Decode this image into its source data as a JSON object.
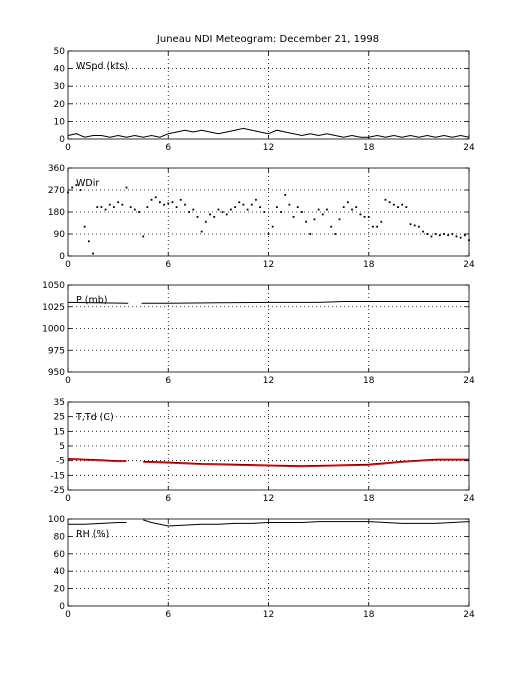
{
  "title": "Juneau NDI Meteogram:   December 21, 1998",
  "x_ticks": [
    0,
    6,
    12,
    18,
    24
  ],
  "colors": {
    "frame": "#000000",
    "grid": "#000000",
    "temperature": "#000000",
    "dewpoint": "#ff0000"
  },
  "chart_data": [
    {
      "type": "line",
      "label": "WSpd (kts)",
      "xlim": [
        0,
        24
      ],
      "ylim": [
        0,
        50
      ],
      "yticks": [
        0,
        10,
        20,
        30,
        40,
        50
      ],
      "grid": true,
      "series": [
        {
          "color": "#000000",
          "x": [
            0,
            0.5,
            1,
            1.5,
            2,
            2.5,
            3,
            3.5,
            4,
            4.5,
            5,
            5.5,
            6,
            6.5,
            7,
            7.5,
            8,
            8.5,
            9,
            9.5,
            10,
            10.5,
            11,
            11.5,
            12,
            12.5,
            13,
            13.5,
            14,
            14.5,
            15,
            15.5,
            16,
            16.5,
            17,
            17.5,
            18,
            18.5,
            19,
            19.5,
            20,
            20.5,
            21,
            21.5,
            22,
            22.5,
            23,
            23.5,
            24
          ],
          "y": [
            2,
            3,
            1,
            2,
            2,
            1,
            2,
            1,
            2,
            1,
            2,
            1,
            3,
            4,
            5,
            4,
            5,
            4,
            3,
            4,
            5,
            6,
            5,
            4,
            3,
            5,
            4,
            3,
            2,
            3,
            2,
            3,
            2,
            1,
            2,
            1,
            1,
            2,
            1,
            2,
            1,
            2,
            1,
            2,
            1,
            2,
            1,
            2,
            1
          ]
        }
      ]
    },
    {
      "type": "scatter",
      "label": "WDir",
      "xlim": [
        0,
        24
      ],
      "ylim": [
        0,
        360
      ],
      "yticks": [
        0,
        90,
        180,
        270,
        360
      ],
      "grid": true,
      "series": [
        {
          "color": "#000000",
          "x": [
            0,
            0.25,
            0.5,
            0.75,
            1,
            1.25,
            1.5,
            1.75,
            2,
            2.25,
            2.5,
            2.75,
            3,
            3.25,
            3.5,
            3.75,
            4,
            4.25,
            4.5,
            4.75,
            5,
            5.25,
            5.5,
            5.75,
            6,
            6.25,
            6.5,
            6.75,
            7,
            7.25,
            7.5,
            7.75,
            8,
            8.25,
            8.5,
            8.75,
            9,
            9.25,
            9.5,
            9.75,
            10,
            10.25,
            10.5,
            10.75,
            11,
            11.25,
            11.5,
            11.75,
            12,
            12.25,
            12.5,
            12.75,
            13,
            13.25,
            13.5,
            13.75,
            14,
            14.25,
            14.5,
            14.75,
            15,
            15.25,
            15.5,
            15.75,
            16,
            16.25,
            16.5,
            16.75,
            17,
            17.25,
            17.5,
            17.75,
            18,
            18.25,
            18.5,
            18.75,
            19,
            19.25,
            19.5,
            19.75,
            20,
            20.25,
            20.5,
            20.75,
            21,
            21.25,
            21.5,
            21.75,
            22,
            22.25,
            22.5,
            22.75,
            23,
            23.25,
            23.5,
            23.75,
            24
          ],
          "y": [
            260,
            280,
            290,
            270,
            120,
            60,
            10,
            200,
            200,
            190,
            210,
            200,
            220,
            210,
            280,
            200,
            190,
            180,
            80,
            200,
            230,
            240,
            220,
            210,
            215,
            220,
            200,
            230,
            210,
            180,
            190,
            160,
            100,
            140,
            170,
            160,
            190,
            180,
            170,
            190,
            200,
            220,
            210,
            190,
            210,
            230,
            200,
            180,
            90,
            120,
            200,
            180,
            250,
            210,
            160,
            200,
            180,
            140,
            90,
            150,
            190,
            170,
            190,
            120,
            90,
            150,
            200,
            220,
            190,
            200,
            170,
            160,
            160,
            120,
            120,
            140,
            230,
            220,
            210,
            200,
            210,
            200,
            130,
            125,
            120,
            100,
            90,
            80,
            90,
            85,
            90,
            85,
            90,
            80,
            75,
            85,
            65
          ]
        }
      ]
    },
    {
      "type": "line",
      "label": "P (mb)",
      "xlim": [
        0,
        24
      ],
      "ylim": [
        950,
        1050
      ],
      "yticks": [
        950,
        975,
        1000,
        1025,
        1050
      ],
      "grid": true,
      "series": [
        {
          "color": "#000000",
          "x": [
            0,
            3.6,
            null,
            4.4,
            6,
            9,
            12,
            15,
            16.5,
            18,
            21,
            24
          ],
          "y": [
            1030,
            1029,
            null,
            1029,
            1029,
            1029.5,
            1030,
            1030,
            1031,
            1031,
            1031,
            1031
          ]
        }
      ]
    },
    {
      "type": "line",
      "label": "T,Td (C)",
      "xlim": [
        0,
        24
      ],
      "ylim": [
        -25,
        35
      ],
      "yticks": [
        -25,
        -15,
        -5,
        5,
        15,
        25,
        35
      ],
      "grid": true,
      "series": [
        {
          "color": "#000000",
          "x": [
            0,
            1,
            2,
            3,
            3.5,
            null,
            4.5,
            6,
            8,
            10,
            12,
            14,
            16,
            18,
            20,
            22,
            24
          ],
          "y": [
            -3.5,
            -4,
            -4.5,
            -5,
            -5,
            null,
            -5.5,
            -6,
            -7,
            -7.5,
            -8,
            -8.5,
            -8,
            -7.5,
            -5.5,
            -4,
            -4
          ]
        },
        {
          "color": "#ff0000",
          "x": [
            0,
            1,
            2,
            3,
            3.5,
            null,
            4.5,
            6,
            8,
            10,
            12,
            14,
            16,
            18,
            20,
            22,
            24
          ],
          "y": [
            -4,
            -4.5,
            -5,
            -5.5,
            -5.5,
            null,
            -6,
            -6.5,
            -7.5,
            -8,
            -8.5,
            -9,
            -8.5,
            -8,
            -6,
            -4.5,
            -4.5
          ]
        }
      ]
    },
    {
      "type": "line",
      "label": "RH (%)",
      "xlim": [
        0,
        24
      ],
      "ylim": [
        0,
        100
      ],
      "yticks": [
        0,
        20,
        40,
        60,
        80,
        100
      ],
      "grid": true,
      "series": [
        {
          "color": "#000000",
          "x": [
            0,
            1,
            2,
            3,
            3.5,
            null,
            4.5,
            5,
            6,
            7,
            8,
            9,
            10,
            11,
            12,
            13,
            14,
            15,
            16,
            17,
            18,
            19,
            20,
            21,
            22,
            23,
            24
          ],
          "y": [
            94,
            94,
            95,
            96,
            96,
            null,
            99,
            96,
            92,
            93,
            94,
            94,
            95,
            95,
            96,
            96,
            96,
            97,
            97,
            97,
            97,
            96,
            95,
            95,
            95,
            96,
            97
          ]
        }
      ]
    }
  ]
}
